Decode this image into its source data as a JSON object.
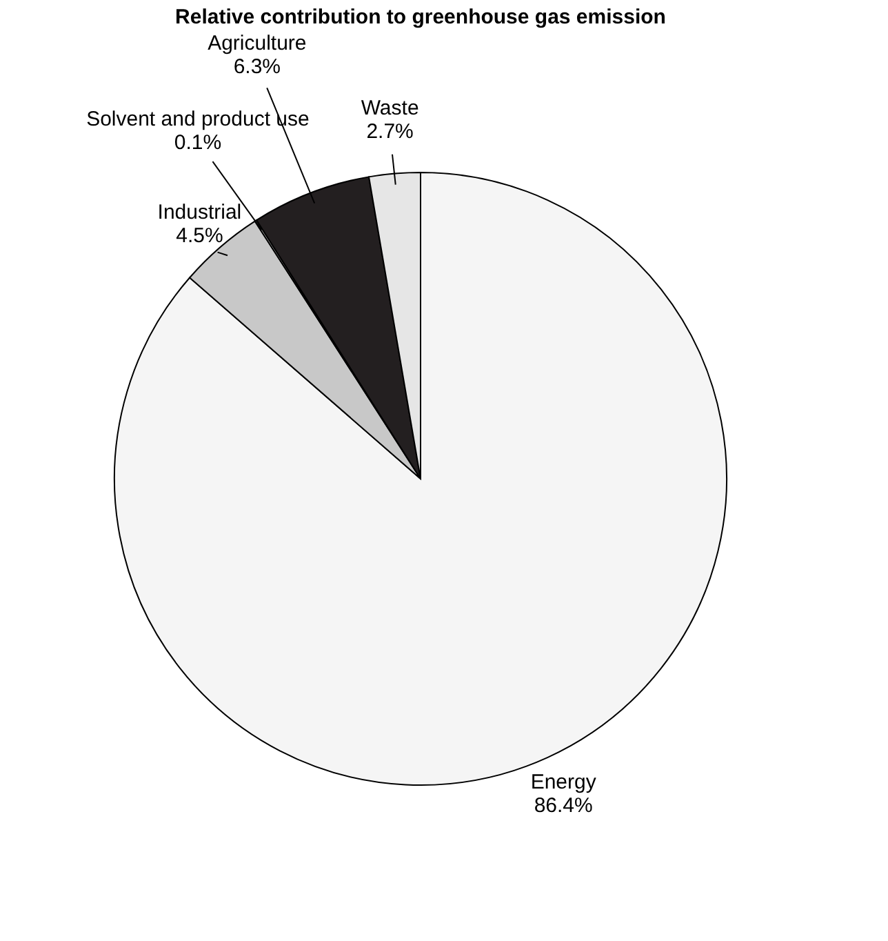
{
  "chart_data": {
    "type": "pie",
    "title": "Relative contribution to greenhouse gas emission",
    "categories": [
      "Energy",
      "Industrial",
      "Solvent and product use",
      "Agriculture",
      "Waste"
    ],
    "values": [
      86.4,
      4.5,
      0.1,
      6.3,
      2.7
    ],
    "value_labels": [
      "86.4%",
      "4.5%",
      "0.1%",
      "6.3%",
      "2.7%"
    ],
    "colors": [
      "#f5f5f5",
      "#c8c8c8",
      "#ffffff",
      "#231f20",
      "#e6e6e6"
    ],
    "legend": false
  }
}
